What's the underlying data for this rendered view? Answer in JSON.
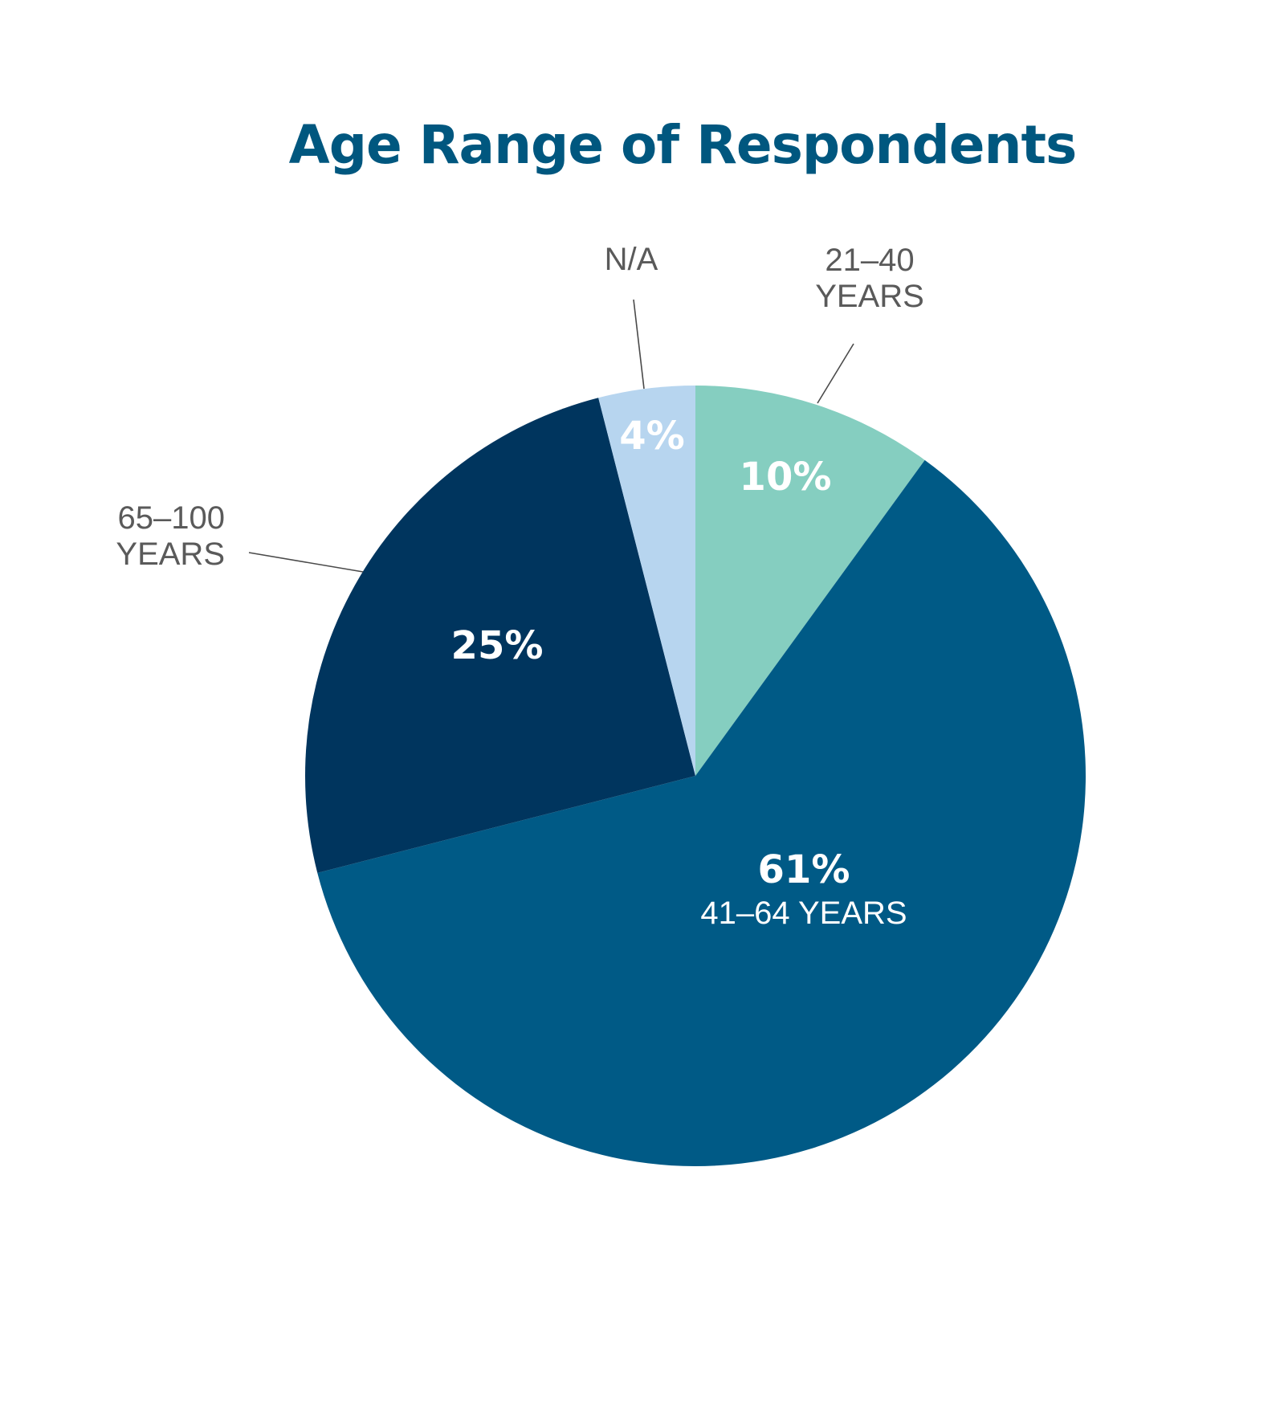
{
  "chart_data": {
    "type": "pie",
    "title": "Age Range of Respondents",
    "slices": [
      {
        "label_lines": [
          "21–40",
          "YEARS"
        ],
        "value": 10,
        "value_label": "10%",
        "color": "#85CEC0"
      },
      {
        "label_lines": [
          "41–64 YEARS"
        ],
        "value": 61,
        "value_label": "61%",
        "color": "#005A86"
      },
      {
        "label_lines": [
          "65–100",
          "YEARS"
        ],
        "value": 25,
        "value_label": "25%",
        "color": "#00355E"
      },
      {
        "label_lines": [
          "N/A"
        ],
        "value": 4,
        "value_label": "4%",
        "color": "#B7D5EF"
      }
    ],
    "start": "12 o'clock",
    "direction": "clockwise",
    "legend": "none"
  },
  "colors": {
    "title": "#00577F",
    "external_label": "#5A5A5A",
    "leader_line": "#4A4A4A",
    "internal_label": "#FFFFFF"
  }
}
